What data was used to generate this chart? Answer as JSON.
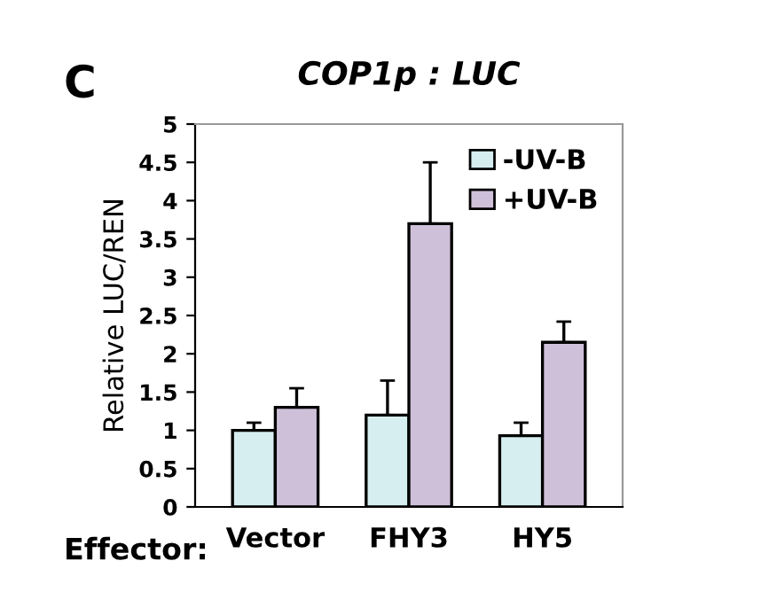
{
  "chart_data": {
    "type": "bar",
    "title": "COP1p : LUC",
    "ylabel": "Relative LUC/REN",
    "annotations": [
      "C",
      "Effector:"
    ],
    "categories": [
      "Vector",
      "FHY3",
      "HY5"
    ],
    "series": [
      {
        "name": "-UV-B",
        "color": "#d6eef0",
        "values": [
          1.0,
          1.2,
          0.93
        ],
        "errors": [
          [
            1.0,
            1.1
          ],
          [
            1.2,
            1.65
          ],
          [
            0.93,
            1.1
          ]
        ]
      },
      {
        "name": "+UV-B",
        "color": "#cfc0da",
        "values": [
          1.3,
          3.7,
          2.15
        ],
        "errors": [
          [
            1.3,
            1.55
          ],
          [
            3.7,
            4.5
          ],
          [
            2.15,
            2.42
          ]
        ]
      }
    ],
    "ylim": [
      0,
      5
    ],
    "yticks": [
      0,
      0.5,
      1,
      1.5,
      2,
      2.5,
      3,
      3.5,
      4,
      4.5,
      5
    ],
    "grid": false,
    "legend": "top right"
  }
}
